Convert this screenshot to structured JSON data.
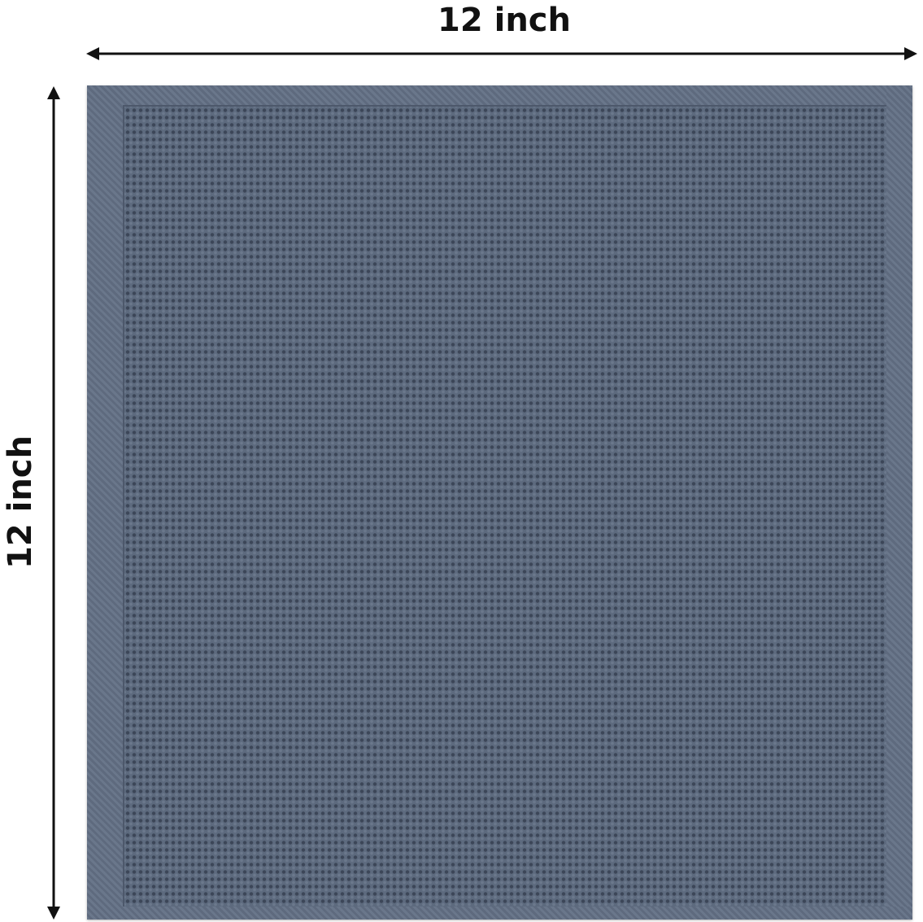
{
  "dimensions": {
    "width_label": "12 inch",
    "height_label": "12 inch"
  },
  "product": {
    "type": "waffle weave dishcloth",
    "color": "#5f6c80"
  }
}
